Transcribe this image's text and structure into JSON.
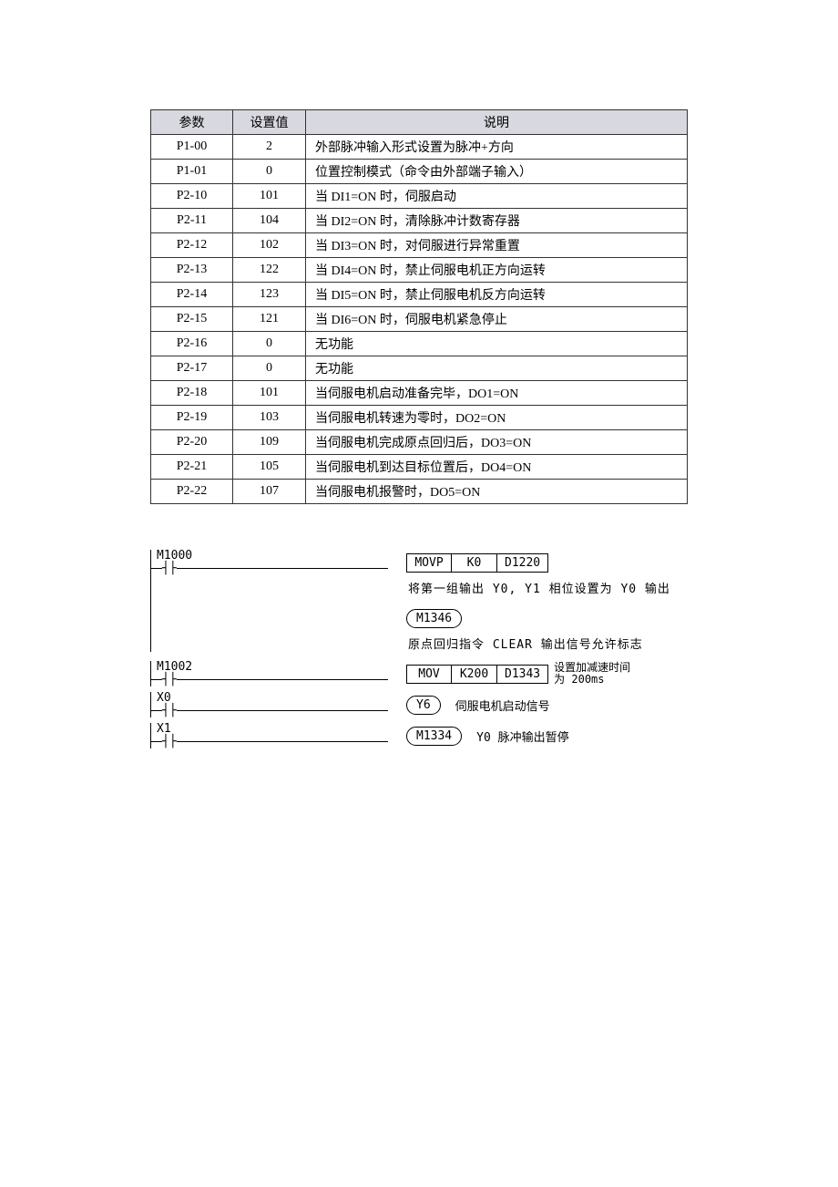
{
  "table": {
    "headers": {
      "param": "参数",
      "value": "设置值",
      "desc": "说明"
    },
    "rows": [
      {
        "param": "P1-00",
        "value": "2",
        "desc": "外部脉冲输入形式设置为脉冲+方向"
      },
      {
        "param": "P1-01",
        "value": "0",
        "desc": "位置控制模式（命令由外部端子输入）"
      },
      {
        "param": "P2-10",
        "value": "101",
        "desc": "当 DI1=ON 时，伺服启动"
      },
      {
        "param": "P2-11",
        "value": "104",
        "desc": "当 DI2=ON 时，清除脉冲计数寄存器"
      },
      {
        "param": "P2-12",
        "value": "102",
        "desc": "当 DI3=ON 时，对伺服进行异常重置"
      },
      {
        "param": "P2-13",
        "value": "122",
        "desc": "当 DI4=ON 时，禁止伺服电机正方向运转"
      },
      {
        "param": "P2-14",
        "value": "123",
        "desc": "当 DI5=ON 时，禁止伺服电机反方向运转"
      },
      {
        "param": "P2-15",
        "value": "121",
        "desc": "当 DI6=ON 时，伺服电机紧急停止"
      },
      {
        "param": "P2-16",
        "value": "0",
        "desc": "无功能"
      },
      {
        "param": "P2-17",
        "value": "0",
        "desc": "无功能"
      },
      {
        "param": "P2-18",
        "value": "101",
        "desc": "当伺服电机启动准备完毕，DO1=ON"
      },
      {
        "param": "P2-19",
        "value": "103",
        "desc": "当伺服电机转速为零时，DO2=ON"
      },
      {
        "param": "P2-20",
        "value": "109",
        "desc": "当伺服电机完成原点回归后，DO3=ON"
      },
      {
        "param": "P2-21",
        "value": "105",
        "desc": "当伺服电机到达目标位置后，DO4=ON"
      },
      {
        "param": "P2-22",
        "value": "107",
        "desc": "当伺服电机报警时，DO5=ON"
      }
    ],
    "header_bg": "#d8d8e0",
    "border_color": "#333333",
    "font_size_pt": 10
  },
  "ladder": {
    "font_size_pt": 10,
    "rungs": [
      {
        "contact": "M1000",
        "outputs": [
          {
            "kind": "box3",
            "cells": [
              "MOVP",
              "K0",
              "D1220"
            ],
            "note": ""
          },
          {
            "kind": "comment",
            "text": "将第一组输出 Y0, Y1 相位设置为 Y0 输出"
          },
          {
            "kind": "coil",
            "label": "M1346"
          },
          {
            "kind": "comment",
            "text": "原点回归指令 CLEAR 输出信号允许标志"
          }
        ]
      },
      {
        "contact": "M1002",
        "outputs": [
          {
            "kind": "box3",
            "cells": [
              "MOV",
              "K200",
              "D1343"
            ],
            "note": "设置加减速时间为 200ms"
          }
        ]
      },
      {
        "contact": "X0",
        "outputs": [
          {
            "kind": "coil",
            "label": "Y6",
            "trail": "伺服电机启动信号"
          }
        ]
      },
      {
        "contact": "X1",
        "outputs": [
          {
            "kind": "coil",
            "label": "M1334",
            "trail": "Y0 脉冲输出暂停"
          }
        ]
      }
    ]
  }
}
